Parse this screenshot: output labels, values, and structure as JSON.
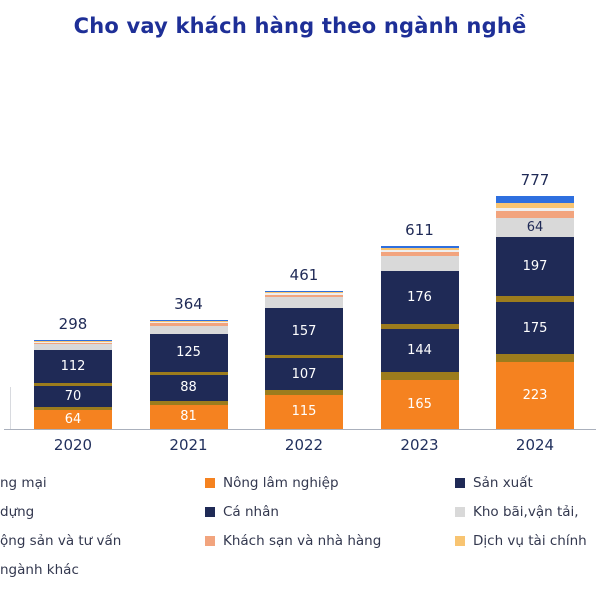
{
  "title": "Cho vay khách hàng theo ngành nghề",
  "title_color": "#1E2F97",
  "chart_data": {
    "type": "stacked-bar",
    "title": "Cho vay khách hàng theo ngành nghề",
    "categories": [
      "2020",
      "2021",
      "2022",
      "2023",
      "2024"
    ],
    "totals": [
      298,
      364,
      461,
      611,
      777
    ],
    "ylim": [
      0,
      800
    ],
    "grid": false,
    "legend_position": "bottom",
    "series": [
      {
        "name": "Nông lâm nghiệp",
        "color": "#F58220",
        "label_color": "#ffffff",
        "values": [
          64,
          81,
          115,
          165,
          223
        ],
        "labels": [
          "64",
          "81",
          "115",
          "165",
          "223"
        ]
      },
      {
        "name": "ng mại",
        "color": "#9C7C1D",
        "label_color": "#ffffff",
        "values": [
          10,
          12,
          14,
          24,
          26
        ],
        "labels": [
          "",
          "",
          "",
          "",
          ""
        ]
      },
      {
        "name": "Cá nhân",
        "color": "#1F2A56",
        "label_color": "#ffffff",
        "values": [
          70,
          88,
          107,
          144,
          175
        ],
        "labels": [
          "70",
          "88",
          "107",
          "144",
          "175"
        ]
      },
      {
        "name": "dựng",
        "color": "#9C7C1D",
        "label_color": "#ffffff",
        "values": [
          8,
          10,
          12,
          18,
          20
        ],
        "labels": [
          "",
          "",
          "",
          "",
          ""
        ]
      },
      {
        "name": "Sản xuất",
        "color": "#1F2A56",
        "label_color": "#ffffff",
        "values": [
          112,
          125,
          157,
          176,
          197
        ],
        "labels": [
          "112",
          "125",
          "157",
          "176",
          "197"
        ]
      },
      {
        "name": "Kho bãi,vận tải,",
        "color": "#D9D9D9",
        "label_color": "#1F2A56",
        "values": [
          18,
          28,
          34,
          50,
          64
        ],
        "labels": [
          "",
          "",
          "",
          "",
          "64"
        ]
      },
      {
        "name": "Khách sạn và nhà hàng",
        "color": "#F2A47E",
        "label_color": "#ffffff",
        "values": [
          6,
          8,
          9,
          14,
          22
        ],
        "labels": [
          "",
          "",
          "",
          "",
          ""
        ]
      },
      {
        "name": "ộng sản và tư vấn",
        "color": "#EFEFEF",
        "label_color": "#1F2A56",
        "values": [
          3,
          4,
          5,
          6,
          10
        ],
        "labels": [
          "",
          "",
          "",
          "",
          ""
        ]
      },
      {
        "name": "Dịch vụ tài chính",
        "color": "#F8C471",
        "label_color": "#1F2A56",
        "values": [
          4,
          5,
          5,
          8,
          16
        ],
        "labels": [
          "",
          "",
          "",
          "",
          ""
        ]
      },
      {
        "name": "ngành khác",
        "color": "#2E6FDF",
        "label_color": "#ffffff",
        "values": [
          3,
          3,
          3,
          6,
          24
        ],
        "labels": [
          "",
          "",
          "",
          "",
          ""
        ]
      }
    ]
  },
  "legend": {
    "columns": [
      {
        "items": [
          {
            "label": "ng mại",
            "swatch": null
          },
          {
            "label": "dựng",
            "swatch": null
          },
          {
            "label": "ộng sản và tư vấn",
            "swatch": null
          },
          {
            "label": "ngành khác",
            "swatch": null
          }
        ]
      },
      {
        "items": [
          {
            "label": "Nông lâm nghiệp",
            "swatch": "#F58220"
          },
          {
            "label": "Cá nhân",
            "swatch": "#1F2A56"
          },
          {
            "label": "Khách sạn và nhà hàng",
            "swatch": "#F2A47E"
          }
        ]
      },
      {
        "items": [
          {
            "label": "Sản xuất",
            "swatch": "#1F2A56"
          },
          {
            "label": "Kho bãi,vận tải,",
            "swatch": "#D9D9D9"
          },
          {
            "label": "Dịch vụ tài chính",
            "swatch": "#F8C471"
          }
        ]
      }
    ]
  }
}
